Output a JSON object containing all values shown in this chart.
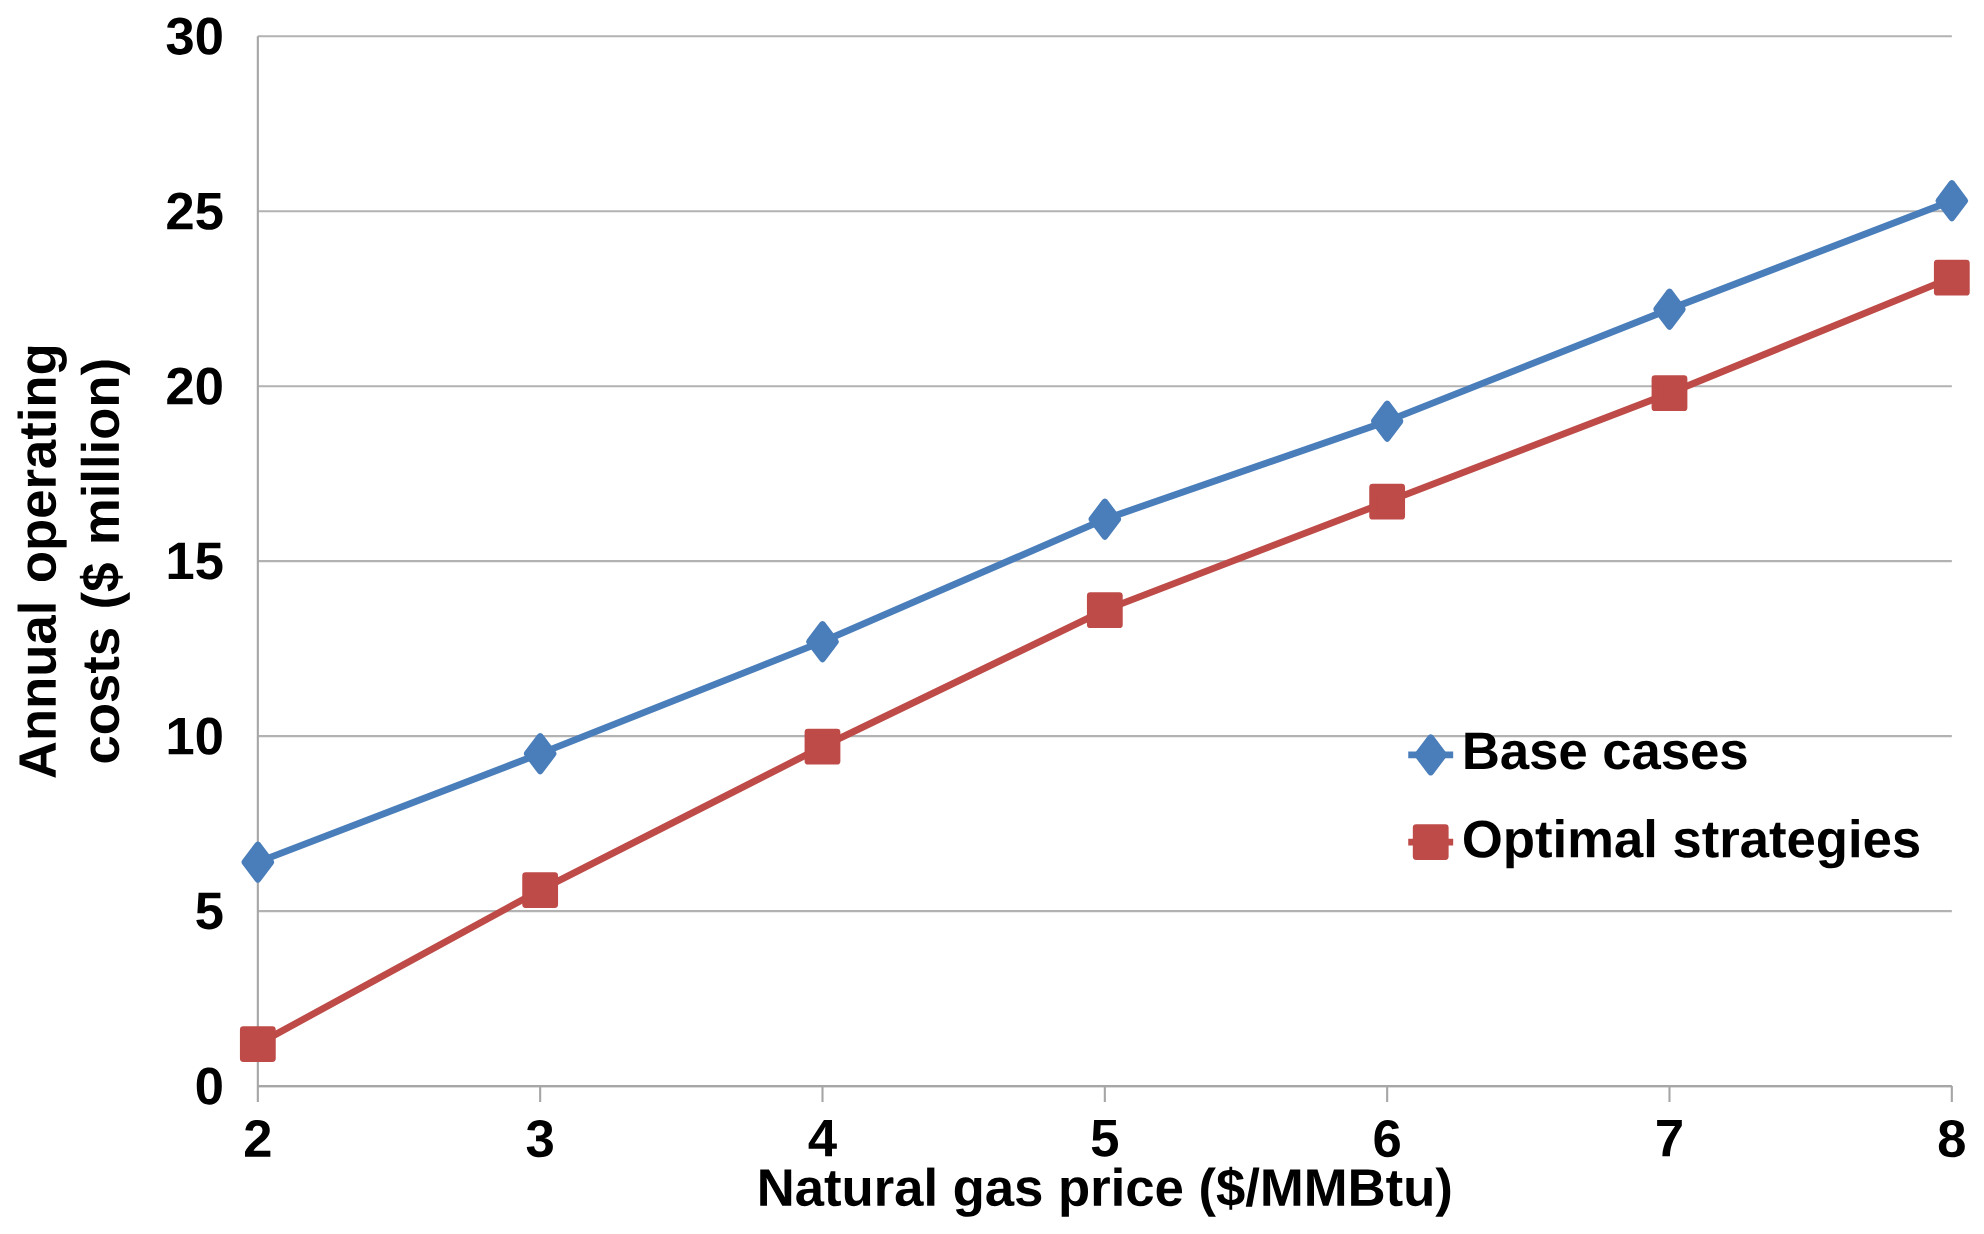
{
  "chart_data": {
    "type": "line",
    "xlabel": "Natural gas price ($/MMBtu)",
    "ylabel": "Annual operating costs ($ million)",
    "categories": [
      "2",
      "3",
      "4",
      "5",
      "6",
      "7",
      "8"
    ],
    "series": [
      {
        "name": "Base cases",
        "color": "#4a7ebb",
        "marker": "diamond",
        "values": [
          6.4,
          9.5,
          12.7,
          16.2,
          19.0,
          22.2,
          25.3
        ]
      },
      {
        "name": "Optimal strategies",
        "color": "#be4b48",
        "marker": "square",
        "values": [
          1.2,
          5.6,
          9.7,
          13.6,
          16.7,
          19.8,
          23.1
        ]
      }
    ],
    "ylim": [
      0,
      30
    ],
    "yticks": [
      0,
      5,
      10,
      15,
      20,
      25,
      30
    ],
    "grid": "y",
    "legend": "right",
    "line_style": "solid"
  }
}
